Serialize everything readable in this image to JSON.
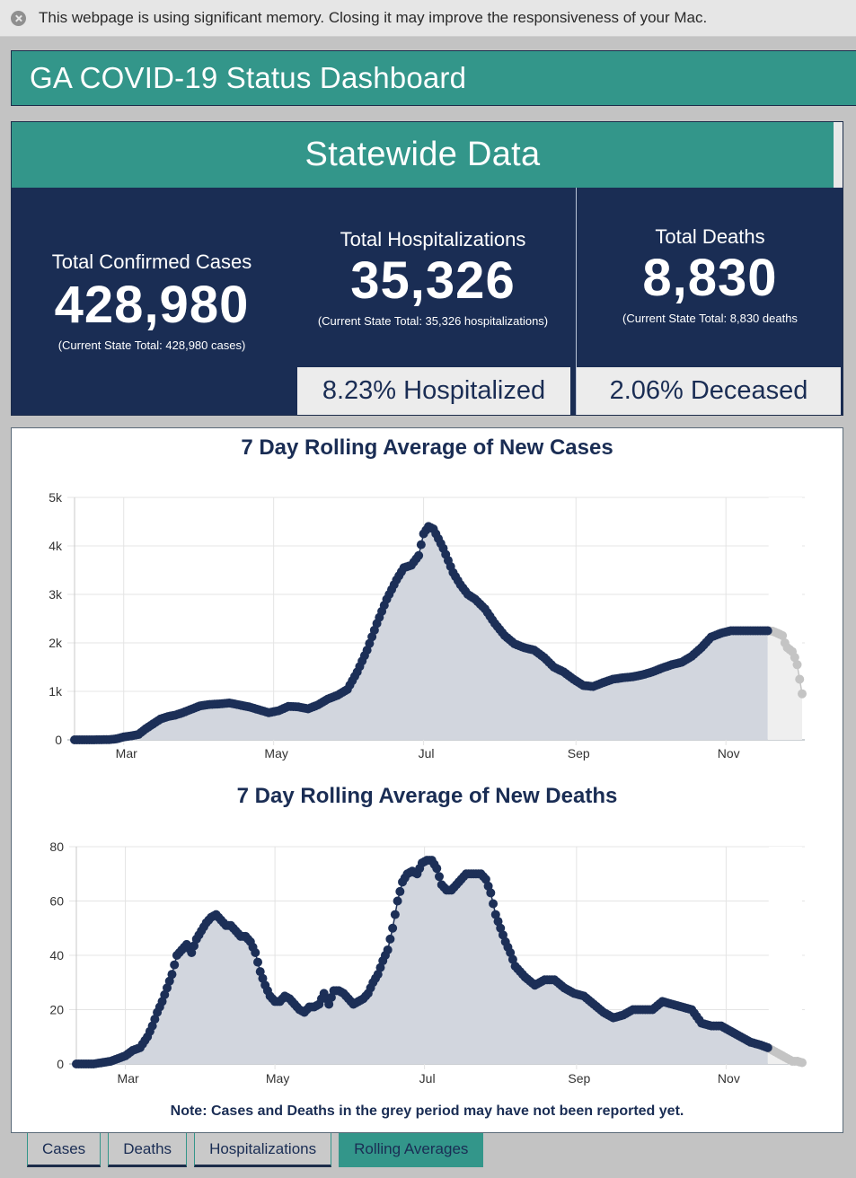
{
  "browser_notice": {
    "icon": "close-circle-icon",
    "message": "This webpage is using significant memory. Closing it may improve the responsiveness of your Mac."
  },
  "header": {
    "title": "GA COVID-19 Status Dashboard"
  },
  "statewide": {
    "title": "Statewide Data",
    "cases": {
      "label": "Total Confirmed Cases",
      "value": "428,980",
      "sub": "(Current State Total: 428,980 cases)"
    },
    "hospitalizations": {
      "label": "Total Hospitalizations",
      "value": "35,326",
      "sub": "(Current State Total: 35,326 hospitalizations)",
      "percent_label": "8.23% Hospitalized"
    },
    "deaths": {
      "label": "Total Deaths",
      "value": "8,830",
      "sub": "(Current State Total: 8,830 deaths",
      "percent_label": "2.06% Deceased"
    }
  },
  "colors": {
    "teal": "#33968a",
    "navy": "#1a2d54",
    "series": "#1c2f57",
    "area": "#d2d6de",
    "pending_series": "#c4c4c4",
    "pending_area": "#efefef",
    "grid": "#e4e4e4"
  },
  "note": "Note: Cases and Deaths in the grey period may have not been reported yet.",
  "tabs": [
    {
      "label": "Cases",
      "active": false
    },
    {
      "label": "Deaths",
      "active": false
    },
    {
      "label": "Hospitalizations",
      "active": false
    },
    {
      "label": "Rolling Averages",
      "active": true
    }
  ],
  "chart_data": [
    {
      "type": "area",
      "title": "7 Day Rolling Average of New Cases",
      "xlabel": "",
      "ylabel": "",
      "x_type": "day_of_year_2020",
      "x_range": [
        41,
        337
      ],
      "ylim": [
        0,
        5000
      ],
      "yticks": [
        0,
        1000,
        2000,
        3000,
        4000,
        5000
      ],
      "ytick_labels": [
        "0",
        "1k",
        "2k",
        "3k",
        "4k",
        "5k"
      ],
      "xticks": [
        61,
        122,
        183,
        245,
        306
      ],
      "xtick_labels": [
        "Mar",
        "May",
        "Jul",
        "Sep",
        "Nov"
      ],
      "grid": true,
      "legend": "none",
      "pending_start": 323,
      "series": [
        {
          "name": "New cases (7-day avg)",
          "x": [
            41,
            48,
            55,
            58,
            61,
            64,
            67,
            70,
            73,
            76,
            79,
            82,
            85,
            88,
            92,
            96,
            100,
            104,
            108,
            112,
            116,
            120,
            124,
            128,
            132,
            136,
            140,
            144,
            148,
            152,
            156,
            160,
            164,
            168,
            172,
            175,
            178,
            181,
            183,
            185,
            187,
            189,
            191,
            193,
            195,
            198,
            201,
            204,
            208,
            212,
            216,
            220,
            224,
            228,
            232,
            236,
            240,
            244,
            248,
            252,
            256,
            260,
            264,
            268,
            272,
            276,
            280,
            284,
            288,
            292,
            296,
            300,
            304,
            308,
            312,
            316,
            320,
            323
          ],
          "y": [
            0,
            0,
            5,
            20,
            60,
            80,
            110,
            230,
            330,
            430,
            480,
            510,
            560,
            620,
            700,
            730,
            740,
            760,
            720,
            680,
            620,
            560,
            600,
            690,
            680,
            640,
            720,
            840,
            920,
            1040,
            1400,
            1850,
            2400,
            2900,
            3300,
            3550,
            3600,
            3800,
            4250,
            4400,
            4350,
            4150,
            3950,
            3700,
            3450,
            3200,
            3000,
            2900,
            2700,
            2400,
            2150,
            1980,
            1900,
            1850,
            1700,
            1500,
            1400,
            1250,
            1120,
            1100,
            1180,
            1250,
            1280,
            1300,
            1340,
            1400,
            1480,
            1550,
            1600,
            1720,
            1900,
            2120,
            2200,
            2250,
            2250,
            2250,
            2250,
            2250
          ]
        },
        {
          "name": "Pending (may not be reported yet)",
          "x": [
            323,
            325,
            327,
            329,
            330,
            331,
            333,
            334,
            335,
            336,
            337
          ],
          "y": [
            2250,
            2240,
            2200,
            2150,
            2000,
            1900,
            1820,
            1700,
            1550,
            1250,
            950
          ]
        }
      ]
    },
    {
      "type": "area",
      "title": "7 Day Rolling Average of New Deaths",
      "xlabel": "",
      "ylabel": "",
      "x_type": "day_of_year_2020",
      "x_range": [
        41,
        337
      ],
      "ylim": [
        0,
        80
      ],
      "yticks": [
        0,
        20,
        40,
        60,
        80
      ],
      "ytick_labels": [
        "0",
        "20",
        "40",
        "60",
        "80"
      ],
      "xticks": [
        61,
        122,
        183,
        245,
        306
      ],
      "xtick_labels": [
        "Mar",
        "May",
        "Jul",
        "Sep",
        "Nov"
      ],
      "grid": true,
      "legend": "none",
      "pending_start": 323,
      "series": [
        {
          "name": "New deaths (7-day avg)",
          "x": [
            41,
            48,
            55,
            58,
            61,
            64,
            67,
            70,
            72,
            74,
            76,
            78,
            80,
            82,
            84,
            86,
            88,
            90,
            92,
            94,
            96,
            98,
            100,
            102,
            104,
            106,
            108,
            110,
            112,
            114,
            116,
            118,
            120,
            122,
            124,
            126,
            128,
            130,
            132,
            134,
            136,
            138,
            140,
            142,
            144,
            146,
            148,
            150,
            152,
            154,
            156,
            158,
            160,
            162,
            164,
            166,
            168,
            170,
            172,
            174,
            176,
            178,
            180,
            182,
            184,
            186,
            188,
            190,
            192,
            194,
            196,
            198,
            200,
            202,
            204,
            206,
            208,
            210,
            212,
            214,
            216,
            218,
            220,
            224,
            228,
            232,
            236,
            240,
            244,
            248,
            252,
            256,
            260,
            264,
            268,
            272,
            276,
            280,
            284,
            288,
            292,
            296,
            300,
            304,
            308,
            312,
            316,
            320,
            323
          ],
          "y": [
            0,
            0,
            1,
            2,
            3,
            5,
            6,
            10,
            14,
            19,
            23,
            28,
            33,
            40,
            42,
            44,
            41,
            46,
            49,
            52,
            54,
            55,
            53,
            51,
            51,
            49,
            47,
            47,
            45,
            41,
            34,
            29,
            25,
            23,
            23,
            25,
            24,
            22,
            20,
            19,
            21,
            21,
            22,
            26,
            22,
            27,
            27,
            26,
            24,
            22,
            23,
            24,
            26,
            30,
            33,
            38,
            42,
            50,
            60,
            67,
            70,
            71,
            70,
            74,
            75,
            75,
            72,
            66,
            64,
            64,
            66,
            68,
            70,
            70,
            70,
            70,
            68,
            63,
            55,
            50,
            45,
            41,
            36,
            32,
            29,
            31,
            31,
            28,
            26,
            25,
            22,
            19,
            17,
            18,
            20,
            20,
            20,
            23,
            22,
            21,
            20,
            15,
            14,
            14,
            12,
            10,
            8,
            7,
            6
          ]
        },
        {
          "name": "Pending (may not be reported yet)",
          "x": [
            323,
            325,
            327,
            329,
            331,
            333,
            335,
            337
          ],
          "y": [
            6,
            5,
            4,
            3,
            2,
            1,
            1,
            0.5
          ]
        }
      ]
    }
  ]
}
